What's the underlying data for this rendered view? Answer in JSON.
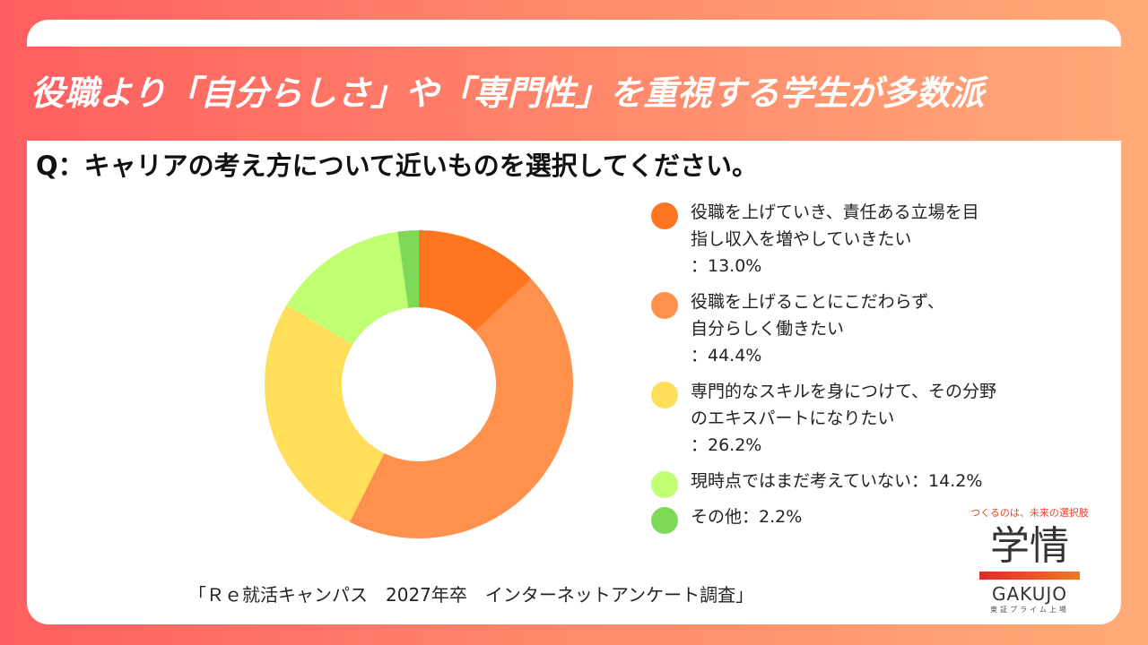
{
  "title": "役職より「自分らしさ」や「専門性」を重視する学生が多数派",
  "question": "Q：キャリアの考え方について近いものを選択してください。",
  "source": "「Ｒｅ就活キャンパス　2027年卒　インターネットアンケート調査」",
  "logo": {
    "tagline": "つくるのは、未来の選択肢",
    "name_jp": "学情",
    "name_en": "GAKUJO",
    "sub": "東証プライム上場"
  },
  "chart_data": {
    "type": "pie",
    "variant": "donut",
    "start": "top, clockwise",
    "legend_position": "right",
    "slices": [
      {
        "label_lines": [
          "役職を上げていき、責任ある立場を目",
          "指し収入を増やしていきたい",
          "：13.0%"
        ],
        "value": 13.0,
        "color": "#ff7520"
      },
      {
        "label_lines": [
          "役職を上げることにこだわらず、",
          "自分らしく働きたい",
          "：44.4%"
        ],
        "value": 44.4,
        "color": "#ff914d"
      },
      {
        "label_lines": [
          "専門的なスキルを身につけて、その分野",
          "のエキスパートになりたい",
          "：26.2%"
        ],
        "value": 26.2,
        "color": "#ffde59"
      },
      {
        "label_lines": [
          "現時点ではまだ考えていない：14.2%"
        ],
        "value": 14.2,
        "color": "#c1ff72"
      },
      {
        "label_lines": [
          "その他：2.2%"
        ],
        "value": 2.2,
        "color": "#7ed957"
      }
    ]
  }
}
